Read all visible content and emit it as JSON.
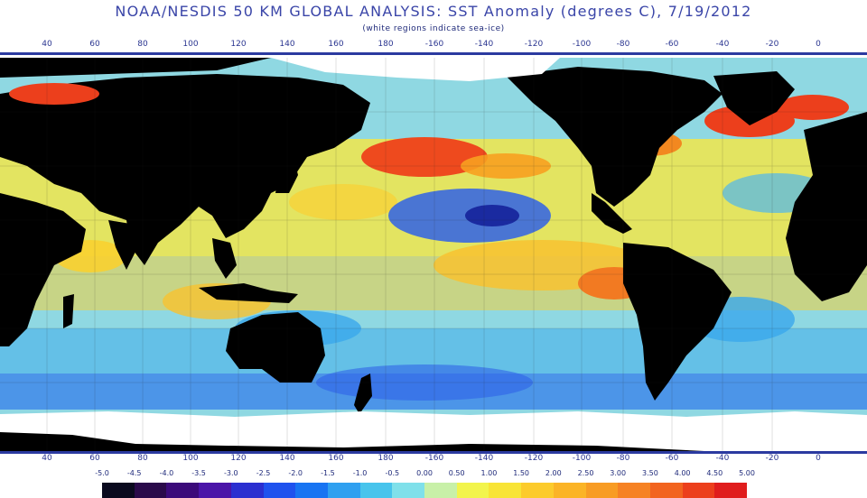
{
  "title": "NOAA/NESDIS 50 KM GLOBAL ANALYSIS: SST Anomaly (degrees C), 7/19/2012",
  "subtitle": "(white regions indicate sea-ice)",
  "longitude_labels": [
    "40",
    "60",
    "80",
    "100",
    "120",
    "140",
    "160",
    "180",
    "-160",
    "-140",
    "-120",
    "-100",
    "-80",
    "-60",
    "-40",
    "-20",
    "0"
  ],
  "colorbar": {
    "labels": [
      "-5.0",
      "-4.5",
      "-4.0",
      "-3.5",
      "-3.0",
      "-2.5",
      "-2.0",
      "-1.5",
      "-1.0",
      "-0.5",
      "0.00",
      "0.50",
      "1.00",
      "1.50",
      "2.00",
      "2.50",
      "3.00",
      "3.50",
      "4.00",
      "4.50",
      "5.00"
    ],
    "colors": [
      "#0a0a1e",
      "#2a0a4a",
      "#3b0a7a",
      "#4a14a8",
      "#2b2fd0",
      "#1f52ee",
      "#1874f2",
      "#2fa0f0",
      "#47c4ec",
      "#7fe0ea",
      "#c8f0a8",
      "#f2f44c",
      "#f8e436",
      "#fccb2c",
      "#fbb426",
      "#f89c24",
      "#f68224",
      "#f2641f",
      "#ec3f1c",
      "#e01d1d"
    ]
  },
  "colors": {
    "land": "#000000",
    "sea_ice": "#ffffff",
    "ocean_neutral": "#7fd6e6",
    "frame": "#2b3aa0",
    "title": "#3a45a8"
  }
}
